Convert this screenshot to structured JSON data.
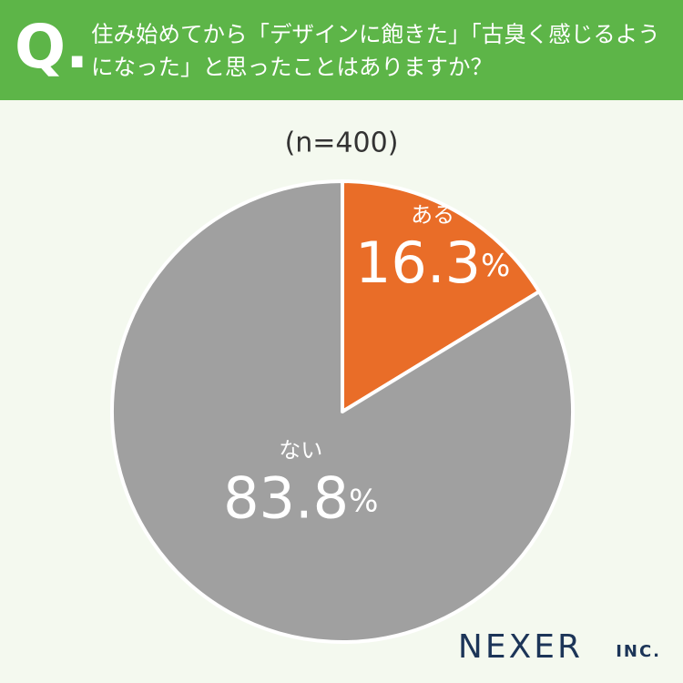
{
  "header": {
    "prefix": "Q."
  },
  "chart_data": {
    "type": "pie",
    "title": "住み始めてから「デザインに飽きた」「古臭く感じるようになった」と思ったことはありますか？",
    "subtitle": "(n=400)",
    "categories": [
      "ある",
      "ない"
    ],
    "values": [
      16.3,
      83.8
    ],
    "unit": "%",
    "colors": [
      "#e96d28",
      "#a0a0a0"
    ]
  },
  "logo": {
    "name": "NEXER",
    "suffix": "INC."
  }
}
